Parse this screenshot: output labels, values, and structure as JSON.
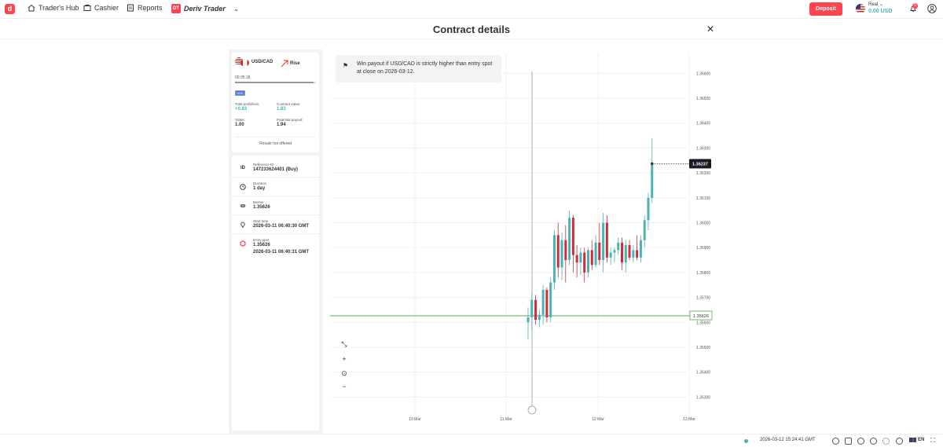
{
  "nav": {
    "traders_hub": "Trader's Hub",
    "cashier": "Cashier",
    "reports": "Reports",
    "app_name": "Deriv Trader",
    "app_badge": "DT"
  },
  "account": {
    "type": "Real",
    "balance": "0.00 USD",
    "deposit_label": "Deposit",
    "notifications": "5"
  },
  "page": {
    "title": "Contract details",
    "close_label": "✕"
  },
  "contract": {
    "symbol": "USD/CAD",
    "trade_type": "Rise",
    "remaining": "00:35:18",
    "remaining_fraction": 0.97,
    "currency": "USD",
    "total_pl_label": "Total profit/loss:",
    "total_pl": "+0.83",
    "contract_value_label": "Contract value:",
    "contract_value": "1.83",
    "stake_label": "Stake:",
    "stake": "1.00",
    "potential_payout_label": "Potential payout:",
    "potential_payout": "1.94",
    "resale": "Resale not offered"
  },
  "details": {
    "reference_label": "Reference ID",
    "reference": "147233624401 (Buy)",
    "duration_label": "Duration",
    "duration": "1 day",
    "barrier_label": "Barrier",
    "barrier": "1.35626",
    "start_label": "Start time",
    "start": "2026-03-11 06:40:30 GMT",
    "entry_label": "Entry spot",
    "entry": "1.35626",
    "entry_time": "2026-03-11 06:40:31 GMT"
  },
  "tooltip": {
    "text": "Win payout if USD/CAD is strictly higher than entry spot at close on 2026-03-12."
  },
  "chart_data": {
    "type": "candlestick",
    "y_ticks": [
      "1.36600",
      "1.36500",
      "1.36400",
      "1.36300",
      "1.36200",
      "1.36100",
      "1.36000",
      "1.35900",
      "1.35800",
      "1.35700",
      "1.35600",
      "1.35500",
      "1.35400",
      "1.35300"
    ],
    "x_ticks": [
      "10 Mar",
      "11 Mar",
      "12 Mar",
      "13 Mar"
    ],
    "ylim": [
      1.3526,
      1.3668
    ],
    "current_price": "1.36237",
    "barrier_price": "1.35626",
    "candles": [
      {
        "o": 1.356,
        "h": 1.3566,
        "l": 1.3553,
        "c": 1.3562
      },
      {
        "o": 1.3562,
        "h": 1.3572,
        "l": 1.3557,
        "c": 1.3569
      },
      {
        "o": 1.3569,
        "h": 1.3571,
        "l": 1.3559,
        "c": 1.3561
      },
      {
        "o": 1.3561,
        "h": 1.3565,
        "l": 1.3558,
        "c": 1.3563
      },
      {
        "o": 1.3563,
        "h": 1.3575,
        "l": 1.3559,
        "c": 1.3573
      },
      {
        "o": 1.3573,
        "h": 1.3574,
        "l": 1.356,
        "c": 1.3562
      },
      {
        "o": 1.3562,
        "h": 1.3578,
        "l": 1.356,
        "c": 1.3576
      },
      {
        "o": 1.3576,
        "h": 1.3597,
        "l": 1.3573,
        "c": 1.3595
      },
      {
        "o": 1.3595,
        "h": 1.36,
        "l": 1.3578,
        "c": 1.3582
      },
      {
        "o": 1.3582,
        "h": 1.3596,
        "l": 1.3577,
        "c": 1.3593
      },
      {
        "o": 1.3593,
        "h": 1.3599,
        "l": 1.3576,
        "c": 1.3585
      },
      {
        "o": 1.3585,
        "h": 1.3605,
        "l": 1.3583,
        "c": 1.3602
      },
      {
        "o": 1.3602,
        "h": 1.3603,
        "l": 1.358,
        "c": 1.3587
      },
      {
        "o": 1.3587,
        "h": 1.3591,
        "l": 1.3578,
        "c": 1.3584
      },
      {
        "o": 1.3584,
        "h": 1.359,
        "l": 1.3579,
        "c": 1.3588
      },
      {
        "o": 1.3588,
        "h": 1.359,
        "l": 1.3576,
        "c": 1.358
      },
      {
        "o": 1.358,
        "h": 1.359,
        "l": 1.3578,
        "c": 1.3589
      },
      {
        "o": 1.3589,
        "h": 1.3593,
        "l": 1.3581,
        "c": 1.3583
      },
      {
        "o": 1.3583,
        "h": 1.3595,
        "l": 1.3582,
        "c": 1.3592
      },
      {
        "o": 1.3592,
        "h": 1.36,
        "l": 1.3583,
        "c": 1.3585
      },
      {
        "o": 1.3585,
        "h": 1.3604,
        "l": 1.358,
        "c": 1.36
      },
      {
        "o": 1.36,
        "h": 1.3603,
        "l": 1.3584,
        "c": 1.3586
      },
      {
        "o": 1.3586,
        "h": 1.359,
        "l": 1.3583,
        "c": 1.3588
      },
      {
        "o": 1.3588,
        "h": 1.359,
        "l": 1.3584,
        "c": 1.3589
      },
      {
        "o": 1.3589,
        "h": 1.3594,
        "l": 1.3587,
        "c": 1.3592
      },
      {
        "o": 1.3592,
        "h": 1.3594,
        "l": 1.3581,
        "c": 1.3584
      },
      {
        "o": 1.3584,
        "h": 1.3593,
        "l": 1.358,
        "c": 1.3591
      },
      {
        "o": 1.3591,
        "h": 1.3593,
        "l": 1.3585,
        "c": 1.3586
      },
      {
        "o": 1.3586,
        "h": 1.3591,
        "l": 1.3584,
        "c": 1.3589
      },
      {
        "o": 1.3589,
        "h": 1.3595,
        "l": 1.3585,
        "c": 1.3586
      },
      {
        "o": 1.3586,
        "h": 1.3595,
        "l": 1.3584,
        "c": 1.3593
      },
      {
        "o": 1.3593,
        "h": 1.3603,
        "l": 1.359,
        "c": 1.3601
      },
      {
        "o": 1.3601,
        "h": 1.3612,
        "l": 1.3597,
        "c": 1.361
      },
      {
        "o": 1.361,
        "h": 1.3634,
        "l": 1.3608,
        "c": 1.3624
      }
    ]
  },
  "footer": {
    "datetime": "2026-03-12 15:24:41 GMT",
    "language": "EN"
  }
}
